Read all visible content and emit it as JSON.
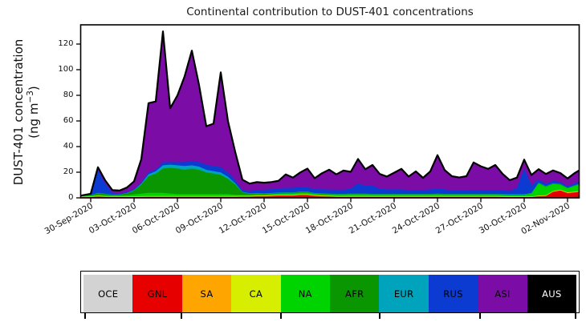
{
  "chart_data": {
    "type": "area",
    "stacked": true,
    "title": "Continental contribution to DUST-401 concentrations",
    "ylabel": {
      "line1": "DUST-401 concentration",
      "line2_pre": "(ng m",
      "line2_sup": "−3",
      "line2_post": ")"
    },
    "x_axis": {
      "tick_labels": [
        "30-Sep-2020",
        "03-Oct-2020",
        "06-Oct-2020",
        "09-Oct-2020",
        "12-Oct-2020",
        "15-Oct-2020",
        "18-Oct-2020",
        "21-Oct-2020",
        "24-Oct-2020",
        "27-Oct-2020",
        "30-Oct-2020",
        "02-Nov-2020"
      ],
      "tick_days": [
        0,
        3,
        6,
        9,
        12,
        15,
        18,
        21,
        24,
        27,
        30,
        33
      ],
      "range_days": [
        -0.65,
        33.8
      ]
    },
    "y_axis": {
      "tick_labels": [
        "0",
        "20",
        "40",
        "60",
        "80",
        "100",
        "120"
      ],
      "ticks": [
        0,
        20,
        40,
        60,
        80,
        100,
        120
      ],
      "lim": [
        0,
        135
      ],
      "grid": false
    },
    "sample_days": [
      -0.65,
      0,
      0.5,
      1,
      1.5,
      2,
      2.5,
      3,
      3.5,
      4,
      4.5,
      5,
      5.5,
      6,
      6.5,
      7,
      7.5,
      8,
      8.5,
      9,
      9.5,
      10,
      10.5,
      11,
      11.5,
      12,
      12.5,
      13,
      13.5,
      14,
      14.5,
      15,
      15.5,
      16,
      16.5,
      17,
      17.5,
      18,
      18.5,
      19,
      19.5,
      20,
      20.5,
      21,
      21.5,
      22,
      22.5,
      23,
      23.5,
      24,
      24.5,
      25,
      25.5,
      26,
      26.5,
      27,
      27.5,
      28,
      28.5,
      29,
      29.5,
      30,
      30.5,
      31,
      31.5,
      32,
      32.5,
      33,
      33.5,
      33.8
    ],
    "edge_color": "#000000",
    "series": [
      {
        "name": "OCE",
        "color": "#d3d3d3",
        "text_color": "#000000",
        "values": [
          0.2,
          0.2,
          0.2,
          0.2,
          0.2,
          0.2,
          0.2,
          0.2,
          0.2,
          0.2,
          0.2,
          0.2,
          0.2,
          0.2,
          0.2,
          0.2,
          0.2,
          0.2,
          0.2,
          0.2,
          0.2,
          0.2,
          0.2,
          0.2,
          0.2,
          0.2,
          0.2,
          0.2,
          0.2,
          0.2,
          0.2,
          0.2,
          0.2,
          0.2,
          0.2,
          0.2,
          0.2,
          0.2,
          0.2,
          0.2,
          0.2,
          0.2,
          0.2,
          0.2,
          0.2,
          0.2,
          0.2,
          0.2,
          0.2,
          0.2,
          0.2,
          0.2,
          0.2,
          0.2,
          0.2,
          0.2,
          0.2,
          0.2,
          0.2,
          0.2,
          0.2,
          0.2,
          0.2,
          0.2,
          0.2,
          0.2,
          0.2,
          0.2,
          0.2,
          0.2
        ]
      },
      {
        "name": "GNL",
        "color": "#e60000",
        "text_color": "#000000",
        "values": [
          0.2,
          0.4,
          0.8,
          0.6,
          0.5,
          0.5,
          0.5,
          0.4,
          0.5,
          0.6,
          0.6,
          0.6,
          0.6,
          0.6,
          0.6,
          0.6,
          0.6,
          0.6,
          0.6,
          0.6,
          0.6,
          0.6,
          0.7,
          0.7,
          1.0,
          1.0,
          1.2,
          1.5,
          1.5,
          1.5,
          2.0,
          2.0,
          1.3,
          1.0,
          0.8,
          0.6,
          0.6,
          0.6,
          0.6,
          0.6,
          0.6,
          0.6,
          0.6,
          0.6,
          0.6,
          0.6,
          0.6,
          0.6,
          0.6,
          0.6,
          0.6,
          0.6,
          0.6,
          0.6,
          0.6,
          0.6,
          0.6,
          0.6,
          0.5,
          0.4,
          0.4,
          0.4,
          0.4,
          1.0,
          1.2,
          4.5,
          5.5,
          3.5,
          4.0,
          4.5
        ]
      },
      {
        "name": "SA",
        "color": "#ffa500",
        "text_color": "#000000",
        "values": [
          0.35,
          0.35,
          0.35,
          0.35,
          0.35,
          0.35,
          0.35,
          0.35,
          0.35,
          0.35,
          0.35,
          0.35,
          0.35,
          0.35,
          0.35,
          0.35,
          0.35,
          0.35,
          0.35,
          0.35,
          0.35,
          0.35,
          0.35,
          0.35,
          0.35,
          0.35,
          0.35,
          0.35,
          0.35,
          0.35,
          0.35,
          0.35,
          0.35,
          0.35,
          0.35,
          0.35,
          0.35,
          0.35,
          0.35,
          0.35,
          0.35,
          0.35,
          0.35,
          0.35,
          0.35,
          0.35,
          0.35,
          0.35,
          0.35,
          0.35,
          0.35,
          0.35,
          0.35,
          0.35,
          0.35,
          0.35,
          0.35,
          0.35,
          0.35,
          0.35,
          0.35,
          0.35,
          0.35,
          0.35,
          0.35,
          0.35,
          0.35,
          0.35,
          0.35,
          0.35
        ]
      },
      {
        "name": "CA",
        "color": "#d7ee00",
        "text_color": "#000000",
        "values": [
          0.25,
          0.25,
          0.25,
          0.25,
          0.25,
          0.25,
          0.25,
          0.25,
          0.25,
          0.25,
          0.25,
          0.25,
          0.25,
          0.25,
          0.25,
          0.25,
          0.25,
          0.25,
          0.25,
          0.25,
          0.25,
          0.25,
          0.25,
          0.25,
          0.25,
          0.25,
          0.25,
          0.25,
          0.25,
          0.25,
          0.25,
          0.25,
          0.25,
          0.25,
          0.25,
          0.25,
          0.25,
          0.25,
          0.25,
          0.25,
          0.25,
          0.25,
          0.25,
          0.25,
          0.25,
          0.25,
          0.25,
          0.25,
          0.25,
          0.25,
          0.25,
          0.25,
          0.25,
          0.25,
          0.25,
          0.25,
          0.25,
          0.25,
          0.25,
          0.25,
          0.25,
          0.25,
          0.25,
          0.25,
          0.25,
          0.25,
          0.25,
          0.25,
          0.25,
          0.25
        ]
      },
      {
        "name": "NA",
        "color": "#00d400",
        "text_color": "#000000",
        "values": [
          0.2,
          0.5,
          0.8,
          0.5,
          0.4,
          0.4,
          0.7,
          1.5,
          2.0,
          2.5,
          2.5,
          2.5,
          2.0,
          1.5,
          1.5,
          1.5,
          1.5,
          1.5,
          1.5,
          1.5,
          1.5,
          1.0,
          0.8,
          0.8,
          1.0,
          0.9,
          1.0,
          1.0,
          1.2,
          1.2,
          1.2,
          1.2,
          1.0,
          1.0,
          1.0,
          1.0,
          1.0,
          1.2,
          1.2,
          1.2,
          1.0,
          1.0,
          1.0,
          1.0,
          1.0,
          1.0,
          1.0,
          1.0,
          1.0,
          1.2,
          1.0,
          1.0,
          1.0,
          1.0,
          1.0,
          1.0,
          1.0,
          1.0,
          1.0,
          1.0,
          1.0,
          1.0,
          2.0,
          9.5,
          6.5,
          5.5,
          4.0,
          3.0,
          4.5,
          5.0
        ]
      },
      {
        "name": "AFR",
        "color": "#0a9600",
        "text_color": "#000000",
        "values": [
          0.2,
          0.3,
          1.2,
          1.0,
          0.6,
          0.8,
          1.5,
          3.0,
          7.0,
          13,
          15,
          19,
          20,
          20,
          19,
          20,
          19,
          17,
          16,
          15,
          12,
          8,
          2.0,
          1.0,
          0.7,
          0.5,
          0.5,
          0.5,
          0.5,
          0.5,
          0.5,
          0.5,
          0.4,
          0.4,
          0.4,
          0.4,
          0.4,
          0.4,
          0.4,
          0.4,
          0.4,
          0.4,
          0.4,
          0.4,
          0.4,
          0.4,
          0.4,
          0.4,
          0.4,
          0.4,
          0.4,
          0.4,
          0.4,
          0.4,
          0.4,
          0.4,
          0.4,
          0.4,
          0.4,
          0.3,
          0.3,
          0.3,
          0.3,
          0.3,
          0.3,
          0.3,
          0.3,
          0.3,
          0.3,
          0.3
        ]
      },
      {
        "name": "EUR",
        "color": "#00a3bc",
        "text_color": "#000000",
        "values": [
          0.1,
          0.2,
          0.3,
          0.3,
          0.2,
          0.2,
          0.3,
          0.4,
          0.8,
          1.5,
          1.8,
          2.5,
          2.5,
          2.5,
          3.0,
          2.5,
          2.5,
          2.0,
          2.0,
          2.0,
          1.5,
          1.0,
          0.4,
          0.3,
          0.3,
          0.3,
          0.3,
          0.3,
          0.3,
          0.3,
          0.3,
          0.3,
          0.3,
          0.3,
          0.3,
          0.3,
          0.3,
          0.3,
          0.3,
          0.3,
          0.3,
          0.3,
          0.3,
          0.3,
          0.3,
          0.3,
          0.3,
          0.3,
          0.3,
          0.3,
          0.3,
          0.3,
          0.3,
          0.3,
          0.3,
          0.3,
          0.3,
          0.3,
          0.3,
          0.3,
          0.3,
          0.3,
          0.3,
          0.3,
          0.3,
          0.3,
          0.3,
          0.3,
          0.3,
          0.3
        ]
      },
      {
        "name": "RUS",
        "color": "#0b3bd0",
        "text_color": "#000000",
        "values": [
          0.1,
          0.5,
          17.5,
          8.0,
          1.5,
          0.8,
          0.7,
          0.8,
          1.0,
          1.5,
          1.5,
          2.5,
          2.0,
          2.5,
          3.0,
          3.5,
          3.5,
          4.0,
          4.0,
          4.0,
          3.5,
          2.5,
          1.5,
          1.5,
          2.5,
          2.8,
          3.0,
          3.2,
          3.5,
          3.5,
          3.5,
          3.5,
          3.0,
          3.2,
          3.2,
          3.2,
          3.2,
          4.0,
          8.0,
          6.0,
          6.5,
          4.0,
          3.5,
          3.5,
          3.5,
          3.0,
          3.0,
          3.0,
          3.5,
          4.0,
          3.5,
          2.8,
          2.8,
          2.8,
          3.0,
          3.0,
          3.0,
          3.0,
          2.8,
          2.5,
          5.0,
          20.0,
          6.0,
          2.5,
          2.0,
          2.0,
          1.5,
          1.2,
          1.5,
          1.5
        ]
      },
      {
        "name": "ASI",
        "color": "#7c0ca6",
        "text_color": "#000000",
        "values": [
          0.2,
          0.5,
          2.5,
          2.5,
          2.0,
          2.2,
          3.5,
          6.0,
          18,
          54,
          53,
          102,
          42,
          52,
          67,
          86,
          60,
          30,
          33,
          74,
          40,
          22,
          8.0,
          6.0,
          6.0,
          5.5,
          5.5,
          6.0,
          10.5,
          8.0,
          11.5,
          14.5,
          8.5,
          12.5,
          15.5,
          12,
          15,
          13,
          19,
          13,
          16,
          11.5,
          10,
          13,
          16,
          10.5,
          14.5,
          9.5,
          14,
          26,
          15,
          11,
          10,
          11,
          21.5,
          18.5,
          16.5,
          19.5,
          13,
          8.5,
          8.0,
          7.0,
          8.0,
          8.0,
          7.5,
          8.0,
          7.0,
          6.0,
          8.0,
          9.0
        ]
      },
      {
        "name": "AUS",
        "color": "#000000",
        "text_color": "#ffffff",
        "values": [
          0,
          0,
          0,
          0,
          0,
          0,
          0,
          0,
          0,
          0,
          0,
          0,
          0,
          0,
          0,
          0,
          0,
          0,
          0,
          0,
          0,
          0,
          0,
          0,
          0,
          0,
          0,
          0,
          0,
          0,
          0,
          0,
          0,
          0,
          0,
          0,
          0,
          0,
          0,
          0,
          0,
          0,
          0,
          0,
          0,
          0,
          0,
          0,
          0,
          0,
          0,
          0,
          0,
          0,
          0,
          0,
          0,
          0,
          0,
          0,
          0,
          0,
          0,
          0,
          0,
          0,
          0,
          0,
          0,
          0
        ]
      }
    ]
  }
}
